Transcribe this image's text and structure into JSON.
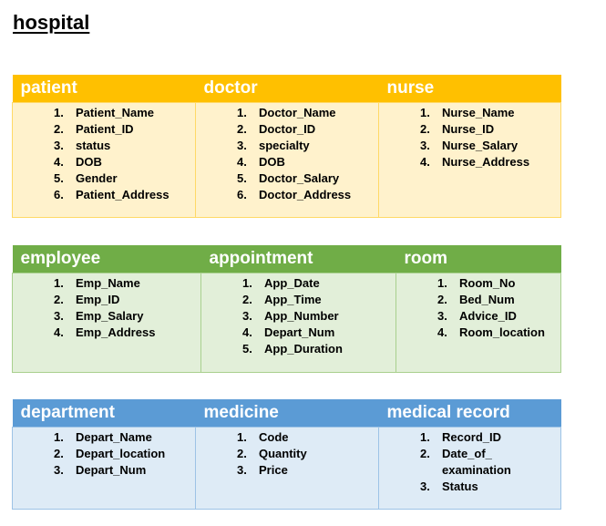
{
  "document": {
    "title": "hospital"
  },
  "tables": [
    {
      "color_header": "#ffc000",
      "color_body": "#fff2cc",
      "columns": [
        {
          "header": "patient",
          "items": [
            "Patient_Name",
            "Patient_ID",
            "status",
            "DOB",
            "Gender",
            "Patient_Address"
          ]
        },
        {
          "header": "doctor",
          "items": [
            "Doctor_Name",
            "Doctor_ID",
            "specialty",
            "DOB",
            "Doctor_Salary",
            "Doctor_Address"
          ]
        },
        {
          "header": "nurse",
          "items": [
            "Nurse_Name",
            "Nurse_ID",
            "Nurse_Salary",
            "Nurse_Address"
          ]
        }
      ]
    },
    {
      "color_header": "#70ad47",
      "color_body": "#e2efd9",
      "columns": [
        {
          "header": "employee",
          "items": [
            "Emp_Name",
            "Emp_ID",
            "Emp_Salary",
            "Emp_Address"
          ]
        },
        {
          "header": "appointment",
          "items": [
            "App_Date",
            "App_Time",
            "App_Number",
            "Depart_Num",
            "App_Duration"
          ]
        },
        {
          "header": "room",
          "items": [
            "Room_No",
            "Bed_Num",
            "Advice_ID",
            "Room_location"
          ]
        }
      ]
    },
    {
      "color_header": "#5b9bd5",
      "color_body": "#deebf6",
      "columns": [
        {
          "header": "department",
          "items": [
            "Depart_Name",
            "Depart_location",
            "Depart_Num"
          ]
        },
        {
          "header": "medicine",
          "items": [
            "Code",
            "Quantity",
            "Price"
          ]
        },
        {
          "header": "medical record",
          "items": [
            "Record_ID",
            "Date_of_ examination",
            "Status"
          ]
        }
      ]
    }
  ]
}
